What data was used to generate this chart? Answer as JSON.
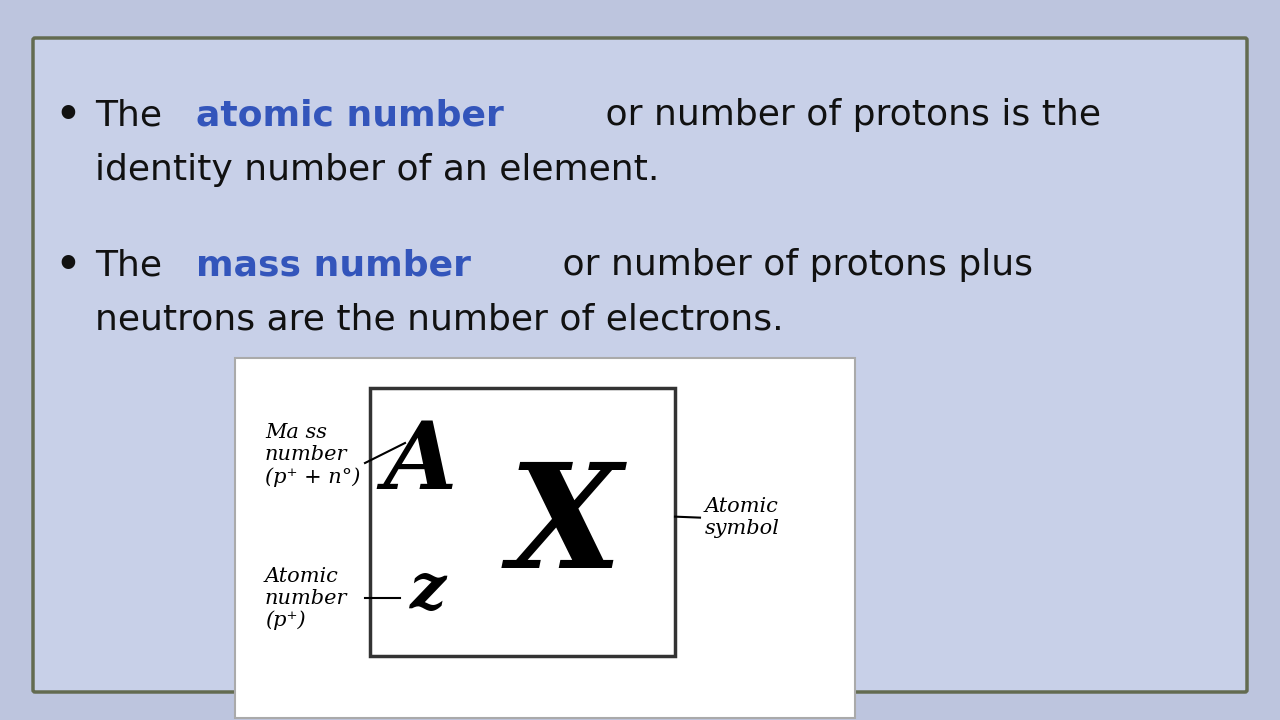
{
  "bg_color": "#bdc5de",
  "box_bg": "#c8d0e8",
  "box_border": "#636b50",
  "blue_color": "#3355bb",
  "text_color": "#111111",
  "diagram_bg": "#ffffff",
  "diagram_border": "#333333",
  "mass_label_line1": "Ma ss",
  "mass_label_line2": "number",
  "mass_label_line3": "(p⁺ + n°)",
  "atomic_label_line1": "Atomic",
  "atomic_label_line2": "number",
  "atomic_label_line3": "(p⁺)",
  "atomic_symbol_label_line1": "Atomic",
  "atomic_symbol_label_line2": "symbol",
  "symbol_A": "A",
  "symbol_Z": "z",
  "symbol_X": "X"
}
